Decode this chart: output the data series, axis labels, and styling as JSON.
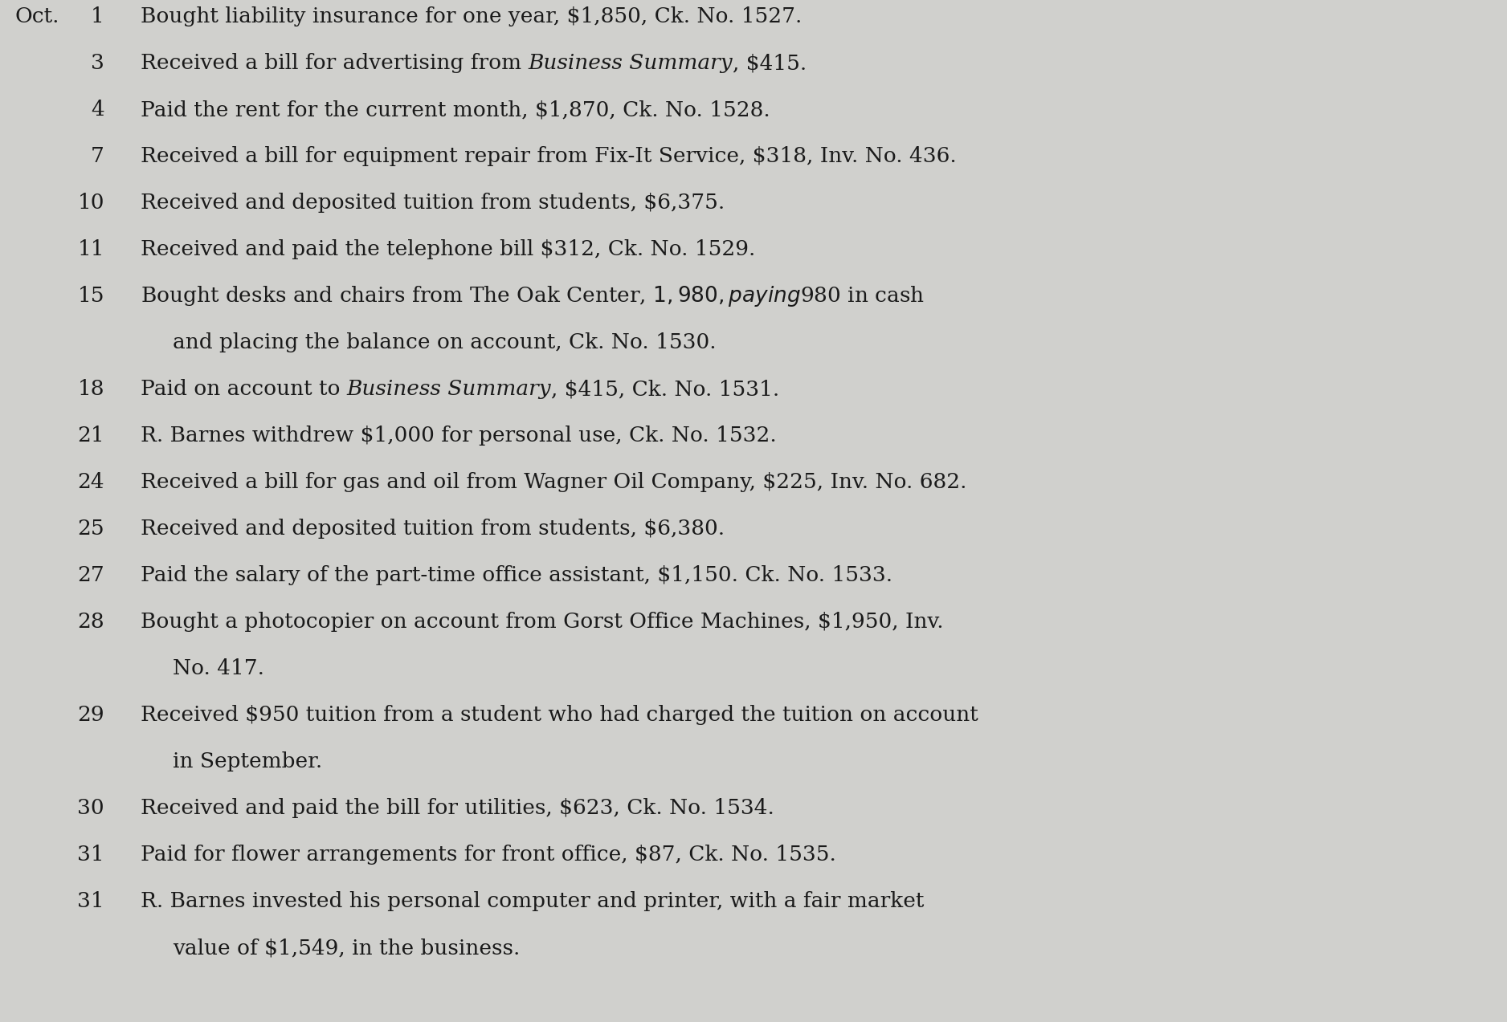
{
  "background_color": "#d0d0cd",
  "text_color": "#1a1a1a",
  "font_size": 19,
  "fig_width": 18.76,
  "fig_height": 12.73,
  "month_label": "Oct.",
  "lines": [
    {
      "day": "1",
      "segments": [
        [
          "normal",
          "Bought liability insurance for one year, $1,850, Ck. No. 1527."
        ]
      ],
      "continuation": []
    },
    {
      "day": "3",
      "segments": [
        [
          "normal",
          "Received a bill for advertising from "
        ],
        [
          "italic",
          "Business Summary"
        ],
        [
          "normal",
          ", $415."
        ]
      ],
      "continuation": []
    },
    {
      "day": "4",
      "segments": [
        [
          "normal",
          "Paid the rent for the current month, $1,870, Ck. No. 1528."
        ]
      ],
      "continuation": []
    },
    {
      "day": "7",
      "segments": [
        [
          "normal",
          "Received a bill for equipment repair from Fix-It Service, $318, Inv. No. 436."
        ]
      ],
      "continuation": []
    },
    {
      "day": "10",
      "segments": [
        [
          "normal",
          "Received and deposited tuition from students, $6,375."
        ]
      ],
      "continuation": []
    },
    {
      "day": "11",
      "segments": [
        [
          "normal",
          "Received and paid the telephone bill $312, Ck. No. 1529."
        ]
      ],
      "continuation": []
    },
    {
      "day": "15",
      "segments": [
        [
          "normal",
          "Bought desks and chairs from The Oak Center, $1,980, paying $980 in cash"
        ]
      ],
      "continuation": [
        [
          [
            "normal",
            "and placing the balance on account, Ck. No. 1530."
          ]
        ]
      ]
    },
    {
      "day": "18",
      "segments": [
        [
          "normal",
          "Paid on account to "
        ],
        [
          "italic",
          "Business Summary"
        ],
        [
          "normal",
          ", $415, Ck. No. 1531."
        ]
      ],
      "continuation": []
    },
    {
      "day": "21",
      "segments": [
        [
          "normal",
          "R. Barnes withdrew $1,000 for personal use, Ck. No. 1532."
        ]
      ],
      "continuation": []
    },
    {
      "day": "24",
      "segments": [
        [
          "normal",
          "Received a bill for gas and oil from Wagner Oil Company, $225, Inv. No. 682."
        ]
      ],
      "continuation": []
    },
    {
      "day": "25",
      "segments": [
        [
          "normal",
          "Received and deposited tuition from students, $6,380."
        ]
      ],
      "continuation": []
    },
    {
      "day": "27",
      "segments": [
        [
          "normal",
          "Paid the salary of the part-time office assistant, $1,150. Ck. No. 1533."
        ]
      ],
      "continuation": []
    },
    {
      "day": "28",
      "segments": [
        [
          "normal",
          "Bought a photocopier on account from Gorst Office Machines, $1,950, Inv."
        ]
      ],
      "continuation": [
        [
          [
            "normal",
            "No. 417."
          ]
        ]
      ]
    },
    {
      "day": "29",
      "segments": [
        [
          "normal",
          "Received $950 tuition from a student who had charged the tuition on account"
        ]
      ],
      "continuation": [
        [
          [
            "normal",
            "in September."
          ]
        ]
      ]
    },
    {
      "day": "30",
      "segments": [
        [
          "normal",
          "Received and paid the bill for utilities, $623, Ck. No. 1534."
        ]
      ],
      "continuation": []
    },
    {
      "day": "31",
      "segments": [
        [
          "normal",
          "Paid for flower arrangements for front office, $87, Ck. No. 1535."
        ]
      ],
      "continuation": []
    },
    {
      "day": "31",
      "segments": [
        [
          "normal",
          "R. Barnes invested his personal computer and printer, with a fair market"
        ]
      ],
      "continuation": [
        [
          [
            "normal",
            "value of $1,549, in the business."
          ]
        ]
      ]
    }
  ]
}
